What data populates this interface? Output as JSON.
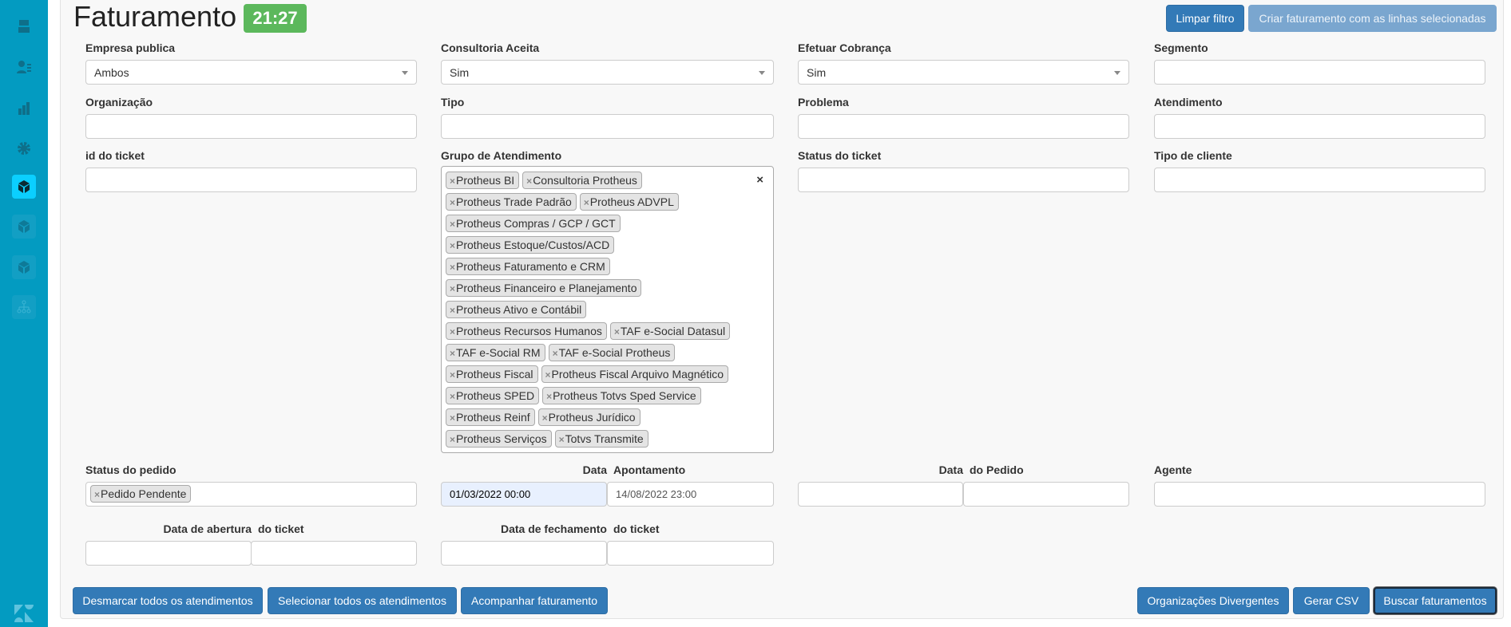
{
  "sidebar": {
    "items": [
      {
        "icon": "inbox-icon",
        "active": false
      },
      {
        "icon": "contacts-icon",
        "active": false
      },
      {
        "icon": "reports-icon",
        "active": false
      },
      {
        "icon": "gear-icon",
        "active": false
      },
      {
        "icon": "cube-app-icon",
        "active": true
      },
      {
        "icon": "cube-app-icon",
        "active": false
      },
      {
        "icon": "cube-app-icon",
        "active": false
      },
      {
        "icon": "org-chart-icon",
        "active": false
      }
    ],
    "logo": "zendesk-logo"
  },
  "header": {
    "title": "Faturamento",
    "timer": "21:27",
    "clear_filter": "Limpar filtro",
    "create_billing": "Criar faturamento com as linhas selecionadas"
  },
  "filters": {
    "empresa_publica": {
      "label": "Empresa publica",
      "value": "Ambos"
    },
    "consultoria_aceita": {
      "label": "Consultoria Aceita",
      "value": "Sim"
    },
    "efetuar_cobranca": {
      "label": "Efetuar Cobrança",
      "value": "Sim"
    },
    "segmento": {
      "label": "Segmento",
      "value": ""
    },
    "organizacao": {
      "label": "Organização",
      "value": ""
    },
    "tipo": {
      "label": "Tipo",
      "value": ""
    },
    "problema": {
      "label": "Problema",
      "value": ""
    },
    "atendimento": {
      "label": "Atendimento",
      "value": ""
    },
    "id_ticket": {
      "label": "id do ticket",
      "value": ""
    },
    "grupo": {
      "label": "Grupo de Atendimento",
      "clear": "×",
      "tags": [
        "Protheus BI",
        "Consultoria Protheus",
        "Protheus Trade Padrão",
        "Protheus ADVPL",
        "Protheus Compras / GCP / GCT",
        "Protheus Estoque/Custos/ACD",
        "Protheus Faturamento e CRM",
        "Protheus Financeiro e Planejamento",
        "Protheus Ativo e Contábil",
        "Protheus Recursos Humanos",
        "TAF e-Social Datasul",
        "TAF e-Social RM",
        "TAF e-Social Protheus",
        "Protheus Fiscal",
        "Protheus Fiscal Arquivo Magnético",
        "Protheus SPED",
        "Protheus Totvs Sped Service",
        "Protheus Reinf",
        "Protheus Jurídico",
        "Protheus Serviços",
        "Totvs Transmite"
      ]
    },
    "status_ticket": {
      "label": "Status do ticket",
      "value": ""
    },
    "tipo_cliente": {
      "label": "Tipo de cliente",
      "value": ""
    },
    "status_pedido": {
      "label": "Status do pedido",
      "tags": [
        "Pedido Pendente"
      ]
    },
    "data_apontamento": {
      "label1": "Data",
      "label2": "Apontamento",
      "from": "01/03/2022 00:00",
      "to": "14/08/2022 23:00"
    },
    "data_pedido": {
      "label1": "Data",
      "label2": "do Pedido",
      "from": "",
      "to": ""
    },
    "agente": {
      "label": "Agente",
      "value": ""
    },
    "data_abertura": {
      "label1": "Data de abertura",
      "label2": "do ticket",
      "from": "",
      "to": ""
    },
    "data_fechamento": {
      "label1": "Data de fechamento",
      "label2": "do ticket",
      "from": "",
      "to": ""
    }
  },
  "footer": {
    "deselect_all": "Desmarcar todos os atendimentos",
    "select_all": "Selecionar todos os atendimentos",
    "track_billing": "Acompanhar faturamento",
    "divergent_orgs": "Organizações Divergentes",
    "csv": "Gerar CSV",
    "search": "Buscar faturamentos"
  },
  "colors": {
    "sidebar": "#039bc1",
    "primary": "#337ab7",
    "timer": "#5cb85c"
  }
}
